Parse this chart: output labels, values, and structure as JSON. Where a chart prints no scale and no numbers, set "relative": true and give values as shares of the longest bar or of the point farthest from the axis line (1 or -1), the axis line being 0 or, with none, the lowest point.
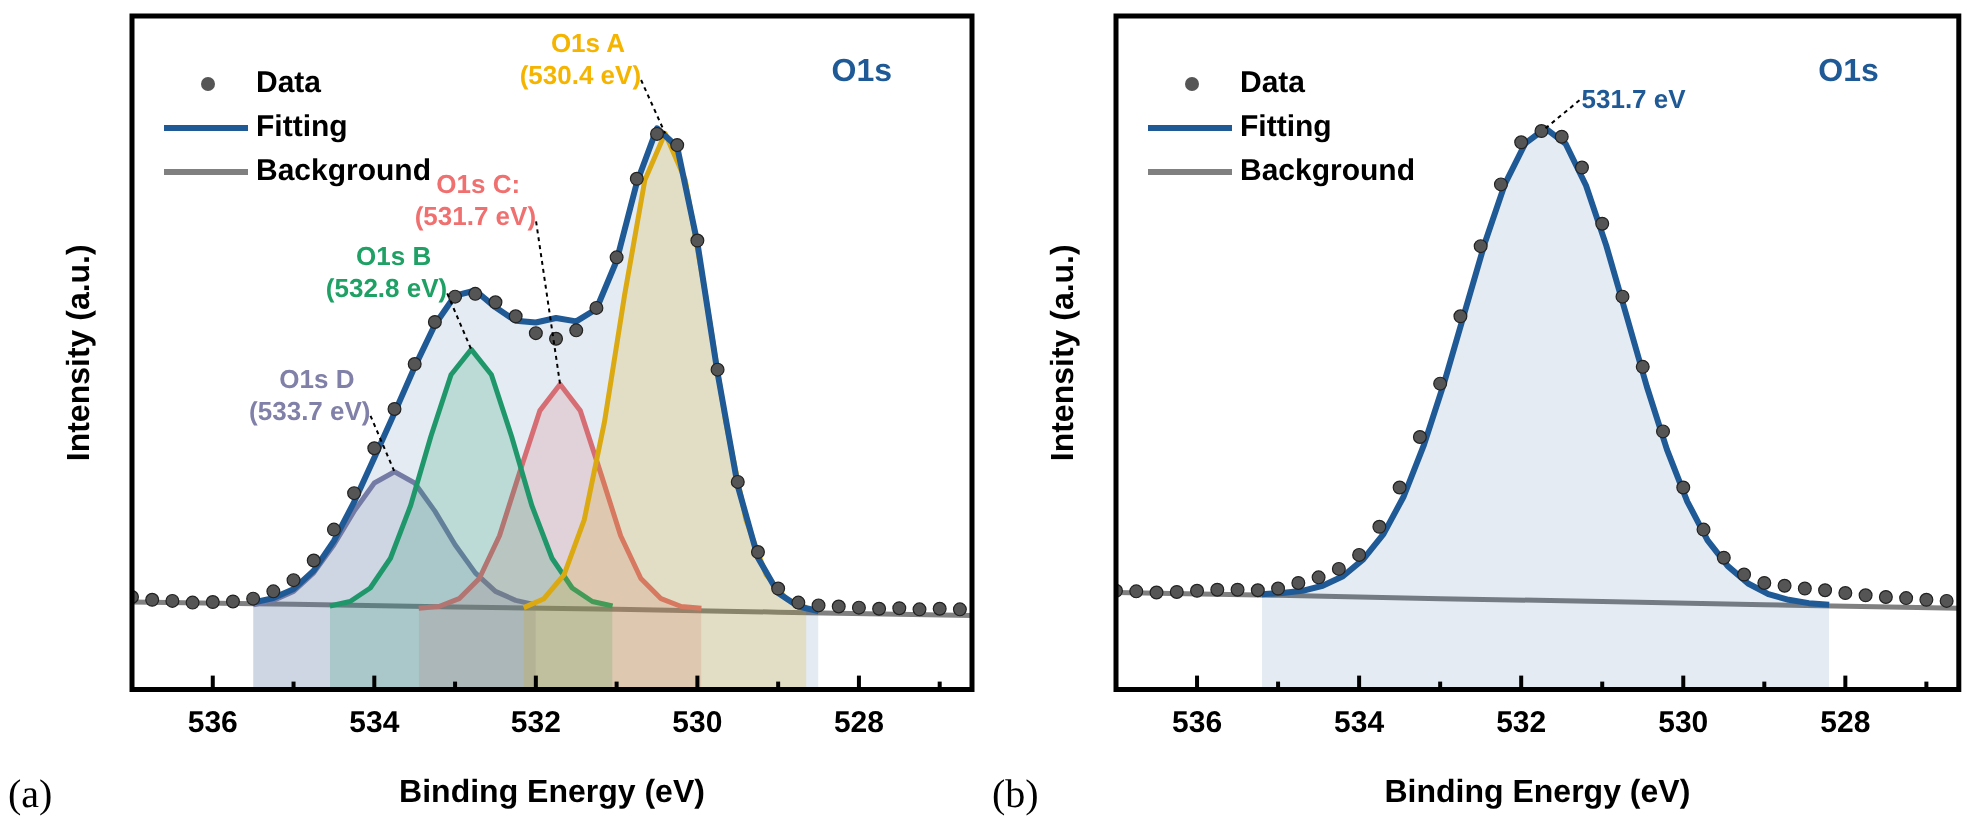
{
  "chart_data": [
    {
      "type": "line",
      "title": "O1s",
      "xlabel": "Binding Energy (eV)",
      "ylabel": "Intensity (a.u.)",
      "relative": true,
      "legend": "top left",
      "xlim": [
        537,
        526.6
      ],
      "xticks": [
        536,
        {
          "value": 535,
          "label": null
        },
        534,
        {
          "value": 533,
          "label": null
        },
        532,
        {
          "value": 531,
          "label": null
        },
        530,
        {
          "value": 529,
          "label": null
        },
        528,
        {
          "value": 527,
          "label": null
        }
      ],
      "annotations": [
        "(a)",
        {
          "text": "O1s A (530.4 eV)",
          "x": 530.4,
          "y": 0.991
        },
        {
          "text": "O1s B (532.8 eV)",
          "x": 532.8,
          "y": 0.606
        },
        {
          "text": "O1s C: (531.7 eV)",
          "x": 531.7,
          "y": 0.544
        },
        {
          "text": "O1s D (533.7 eV)",
          "x": 533.75,
          "y": 0.388
        }
      ],
      "series": [
        {
          "name": "Data",
          "type": "scatter",
          "color": "#555555",
          "x": [
            537,
            536.75,
            536.5,
            536.25,
            536,
            535.75,
            535.5,
            535.25,
            535,
            534.75,
            534.5,
            534.25,
            534,
            533.75,
            533.5,
            533.25,
            533,
            532.75,
            532.5,
            532.25,
            532,
            531.75,
            531.5,
            531.25,
            531,
            530.75,
            530.5,
            530.25,
            530,
            529.75,
            529.5,
            529.25,
            529,
            528.75,
            528.5,
            528.25,
            528,
            527.75,
            527.5,
            527.25,
            527,
            526.75
          ],
          "values": [
            0.165,
            0.16,
            0.158,
            0.155,
            0.156,
            0.157,
            0.162,
            0.175,
            0.195,
            0.23,
            0.285,
            0.35,
            0.43,
            0.5,
            0.58,
            0.655,
            0.7,
            0.705,
            0.69,
            0.665,
            0.635,
            0.625,
            0.64,
            0.68,
            0.77,
            0.91,
            0.99,
            0.97,
            0.8,
            0.57,
            0.37,
            0.245,
            0.18,
            0.155,
            0.15,
            0.148,
            0.146,
            0.144,
            0.145,
            0.143,
            0.144,
            0.143
          ]
        },
        {
          "name": "Fitting",
          "type": "area",
          "color": "#1f5a96",
          "x": [
            535.5,
            535.25,
            535,
            534.75,
            534.5,
            534.25,
            534,
            533.75,
            533.5,
            533.25,
            533,
            532.75,
            532.5,
            532.25,
            532,
            531.75,
            531.5,
            531.25,
            531,
            530.75,
            530.5,
            530.25,
            530,
            529.75,
            529.5,
            529.25,
            529,
            528.75,
            528.5
          ],
          "values": [
            0.155,
            0.163,
            0.179,
            0.212,
            0.265,
            0.334,
            0.413,
            0.493,
            0.575,
            0.65,
            0.702,
            0.711,
            0.681,
            0.657,
            0.654,
            0.662,
            0.656,
            0.678,
            0.764,
            0.903,
            1,
            0.967,
            0.796,
            0.564,
            0.363,
            0.235,
            0.172,
            0.148,
            0.14
          ]
        },
        {
          "name": "Background",
          "color": "#808080",
          "x": [
            537,
            535,
            533,
            531,
            529,
            526.6
          ],
          "values": [
            0.156,
            0.152,
            0.147,
            0.143,
            0.138,
            0.132
          ]
        },
        {
          "type": "area",
          "color": "#f5b400",
          "x": [
            532.15,
            531.9,
            531.65,
            531.4,
            531.15,
            530.9,
            530.65,
            530.4,
            530.15,
            529.9,
            529.65,
            529.4,
            529.15,
            528.9,
            528.65
          ],
          "values": [
            0.146,
            0.162,
            0.205,
            0.303,
            0.477,
            0.704,
            0.908,
            0.991,
            0.908,
            0.704,
            0.477,
            0.303,
            0.205,
            0.162,
            0.146
          ]
        },
        {
          "type": "area",
          "color": "#1fa065",
          "x": [
            534.55,
            534.3,
            534.05,
            533.8,
            533.55,
            533.3,
            533.05,
            532.8,
            532.55,
            532.3,
            532.05,
            531.8,
            531.55,
            531.3,
            531.05
          ],
          "values": [
            0.149,
            0.157,
            0.181,
            0.234,
            0.328,
            0.451,
            0.561,
            0.606,
            0.561,
            0.451,
            0.328,
            0.234,
            0.181,
            0.157,
            0.149
          ]
        },
        {
          "type": "area",
          "color": "#f07070",
          "x": [
            533.45,
            533.2,
            532.95,
            532.7,
            532.45,
            532.2,
            531.95,
            531.7,
            531.45,
            531.2,
            530.95,
            530.7,
            530.45,
            530.2,
            529.95
          ],
          "values": [
            0.145,
            0.148,
            0.162,
            0.198,
            0.274,
            0.387,
            0.497,
            0.544,
            0.497,
            0.387,
            0.274,
            0.198,
            0.162,
            0.148,
            0.145
          ]
        },
        {
          "type": "area",
          "color": "#8080a8",
          "x": [
            535.5,
            535.25,
            535,
            534.75,
            534.5,
            534.25,
            534,
            533.75,
            533.5,
            533.25,
            533,
            532.75,
            532.5,
            532.25,
            532
          ],
          "values": [
            0.151,
            0.159,
            0.175,
            0.208,
            0.258,
            0.318,
            0.368,
            0.388,
            0.368,
            0.318,
            0.258,
            0.208,
            0.175,
            0.159,
            0.151
          ]
        }
      ]
    },
    {
      "type": "line",
      "title": "O1s",
      "xlabel": "Binding Energy (eV)",
      "ylabel": "Intensity (a.u.)",
      "relative": true,
      "legend": "top left",
      "xlim": [
        537,
        526.6
      ],
      "xticks": [
        536,
        {
          "value": 535,
          "label": null
        },
        534,
        {
          "value": 533,
          "label": null
        },
        532,
        {
          "value": 531,
          "label": null
        },
        530,
        {
          "value": 529,
          "label": null
        },
        528,
        {
          "value": 527,
          "label": null
        }
      ],
      "annotations": [
        "(b)",
        {
          "text": "531.7 eV",
          "x": 531.7,
          "y": 1
        }
      ],
      "series": [
        {
          "name": "Data",
          "type": "scatter",
          "color": "#555555",
          "x": [
            537,
            536.75,
            536.5,
            536.25,
            536,
            535.75,
            535.5,
            535.25,
            535,
            534.75,
            534.5,
            534.25,
            534,
            533.75,
            533.5,
            533.25,
            533,
            532.75,
            532.5,
            532.25,
            532,
            531.75,
            531.5,
            531.25,
            531,
            530.75,
            530.5,
            530.25,
            530,
            529.75,
            529.5,
            529.25,
            529,
            528.75,
            528.5,
            528.25,
            528,
            527.75,
            527.5,
            527.25,
            527,
            526.75
          ],
          "values": [
            0.176,
            0.175,
            0.173,
            0.174,
            0.176,
            0.178,
            0.178,
            0.177,
            0.18,
            0.19,
            0.2,
            0.215,
            0.24,
            0.29,
            0.36,
            0.45,
            0.545,
            0.665,
            0.79,
            0.9,
            0.975,
            0.995,
            0.985,
            0.93,
            0.83,
            0.7,
            0.575,
            0.46,
            0.36,
            0.285,
            0.235,
            0.205,
            0.19,
            0.185,
            0.18,
            0.177,
            0.172,
            0.168,
            0.165,
            0.163,
            0.16,
            0.158
          ]
        },
        {
          "name": "Fitting",
          "type": "area",
          "color": "#1f5a96",
          "x": [
            535.2,
            534.95,
            534.7,
            534.45,
            534.2,
            533.95,
            533.7,
            533.45,
            533.2,
            532.95,
            532.7,
            532.45,
            532.2,
            531.95,
            531.7,
            531.45,
            531.2,
            530.95,
            530.7,
            530.45,
            530.2,
            529.95,
            529.7,
            529.45,
            529.2,
            528.95,
            528.7,
            528.45,
            528.2
          ],
          "values": [
            0.17,
            0.172,
            0.176,
            0.185,
            0.202,
            0.232,
            0.277,
            0.344,
            0.436,
            0.547,
            0.671,
            0.795,
            0.901,
            0.973,
            1,
            0.972,
            0.898,
            0.791,
            0.666,
            0.54,
            0.427,
            0.335,
            0.266,
            0.22,
            0.189,
            0.17,
            0.16,
            0.154,
            0.151
          ]
        },
        {
          "name": "Background",
          "color": "#808080",
          "x": [
            537,
            535,
            533,
            531,
            529,
            526.6
          ],
          "values": [
            0.173,
            0.168,
            0.162,
            0.157,
            0.151,
            0.145
          ]
        }
      ]
    }
  ]
}
